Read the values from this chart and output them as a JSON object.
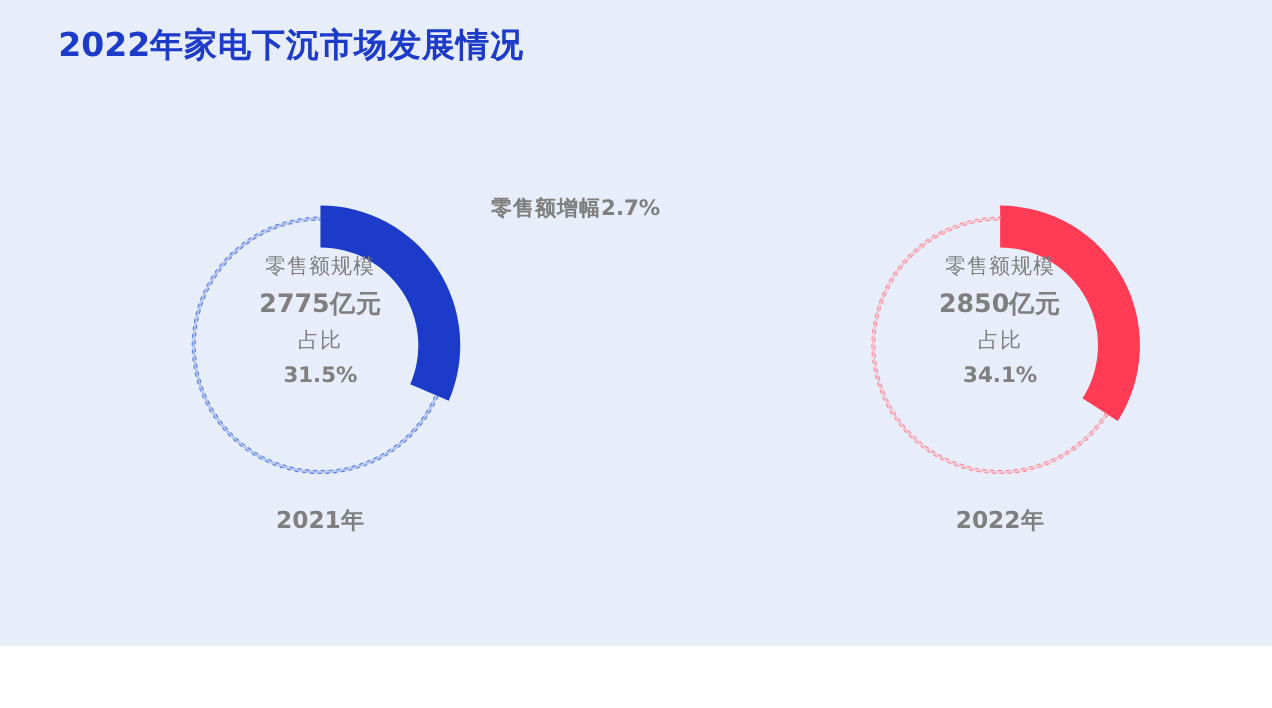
{
  "chart_data": [
    {
      "type": "donut",
      "title": "2022年家电下沉市场发展情况",
      "xlabel": "2021年",
      "categories": [
        null,
        null
      ],
      "values": [
        31.5,
        68.5
      ],
      "colors": [
        "#1c3bc9",
        "#5b7fe0"
      ],
      "annotations": [
        "零售额规模",
        "2775亿元",
        "占比",
        "31.5%",
        "零售额增幅2.7%"
      ]
    },
    {
      "type": "donut",
      "xlabel": "2022年",
      "categories": [
        null,
        null
      ],
      "values": [
        34.1,
        65.9
      ],
      "colors": [
        "#ff3b55",
        "#ff8a9a"
      ],
      "annotations": [
        "零售额规模",
        "2850亿元",
        "占比",
        "34.1%"
      ]
    }
  ]
}
